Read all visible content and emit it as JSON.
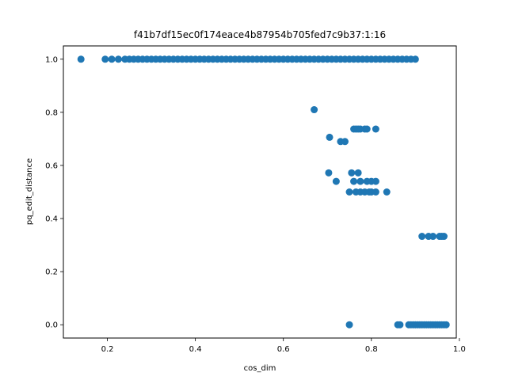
{
  "chart_data": {
    "type": "scatter",
    "title": "f41b7df15ec0f174eace4b87954b705fed7c9b37:1:16",
    "xlabel": "cos_dim",
    "ylabel": "pq_edit_distance",
    "xlim": [
      0.1,
      0.993
    ],
    "ylim": [
      -0.05,
      1.05
    ],
    "xticks": [
      0.2,
      0.4,
      0.6,
      0.8,
      1.0
    ],
    "xtick_labels": [
      "0.2",
      "0.4",
      "0.6",
      "0.8",
      "1.0"
    ],
    "yticks": [
      0.0,
      0.2,
      0.4,
      0.6,
      0.8,
      1.0
    ],
    "ytick_labels": [
      "0.0",
      "0.2",
      "0.4",
      "0.6",
      "0.8",
      "1.0"
    ],
    "grid": false,
    "legend": "none",
    "marker_color": "#1f77b4",
    "series": [
      {
        "x": [
          0.14,
          0.195,
          0.21,
          0.225,
          0.24,
          0.25,
          0.26,
          0.27,
          0.28,
          0.29,
          0.3,
          0.31,
          0.32,
          0.33,
          0.34,
          0.35,
          0.36,
          0.37,
          0.38,
          0.39,
          0.4,
          0.41,
          0.42,
          0.43,
          0.44,
          0.45,
          0.46,
          0.47,
          0.48,
          0.49,
          0.5,
          0.51,
          0.52,
          0.53,
          0.54,
          0.55,
          0.56,
          0.57,
          0.58,
          0.59,
          0.6,
          0.61,
          0.62,
          0.63,
          0.64,
          0.65,
          0.66,
          0.67,
          0.68,
          0.69,
          0.7,
          0.71,
          0.72,
          0.73,
          0.74,
          0.75,
          0.76,
          0.77,
          0.78,
          0.79,
          0.8,
          0.81,
          0.82,
          0.83,
          0.84,
          0.85,
          0.86,
          0.87,
          0.88,
          0.89,
          0.9,
          0.67,
          0.705,
          0.76,
          0.765,
          0.77,
          0.775,
          0.785,
          0.79,
          0.81,
          0.73,
          0.74,
          0.703,
          0.755,
          0.77,
          0.72,
          0.76,
          0.775,
          0.79,
          0.8,
          0.81,
          0.75,
          0.765,
          0.775,
          0.785,
          0.795,
          0.8,
          0.81,
          0.835,
          0.915,
          0.93,
          0.94,
          0.955,
          0.96,
          0.965,
          0.75,
          0.86,
          0.865,
          0.885,
          0.89,
          0.895,
          0.9,
          0.905,
          0.91,
          0.915,
          0.92,
          0.925,
          0.93,
          0.935,
          0.94,
          0.945,
          0.95,
          0.955,
          0.96,
          0.965,
          0.97
        ],
        "y": [
          1.0,
          1.0,
          1.0,
          1.0,
          1.0,
          1.0,
          1.0,
          1.0,
          1.0,
          1.0,
          1.0,
          1.0,
          1.0,
          1.0,
          1.0,
          1.0,
          1.0,
          1.0,
          1.0,
          1.0,
          1.0,
          1.0,
          1.0,
          1.0,
          1.0,
          1.0,
          1.0,
          1.0,
          1.0,
          1.0,
          1.0,
          1.0,
          1.0,
          1.0,
          1.0,
          1.0,
          1.0,
          1.0,
          1.0,
          1.0,
          1.0,
          1.0,
          1.0,
          1.0,
          1.0,
          1.0,
          1.0,
          1.0,
          1.0,
          1.0,
          1.0,
          1.0,
          1.0,
          1.0,
          1.0,
          1.0,
          1.0,
          1.0,
          1.0,
          1.0,
          1.0,
          1.0,
          1.0,
          1.0,
          1.0,
          1.0,
          1.0,
          1.0,
          1.0,
          1.0,
          1.0,
          0.81,
          0.706,
          0.737,
          0.737,
          0.737,
          0.737,
          0.737,
          0.737,
          0.737,
          0.69,
          0.69,
          0.572,
          0.572,
          0.572,
          0.54,
          0.54,
          0.54,
          0.54,
          0.54,
          0.54,
          0.5,
          0.5,
          0.5,
          0.5,
          0.5,
          0.5,
          0.5,
          0.5,
          0.333,
          0.333,
          0.333,
          0.333,
          0.333,
          0.333,
          0.0,
          0.0,
          0.0,
          0.0,
          0.0,
          0.0,
          0.0,
          0.0,
          0.0,
          0.0,
          0.0,
          0.0,
          0.0,
          0.0,
          0.0,
          0.0,
          0.0,
          0.0,
          0.0,
          0.0,
          0.0
        ]
      }
    ]
  }
}
